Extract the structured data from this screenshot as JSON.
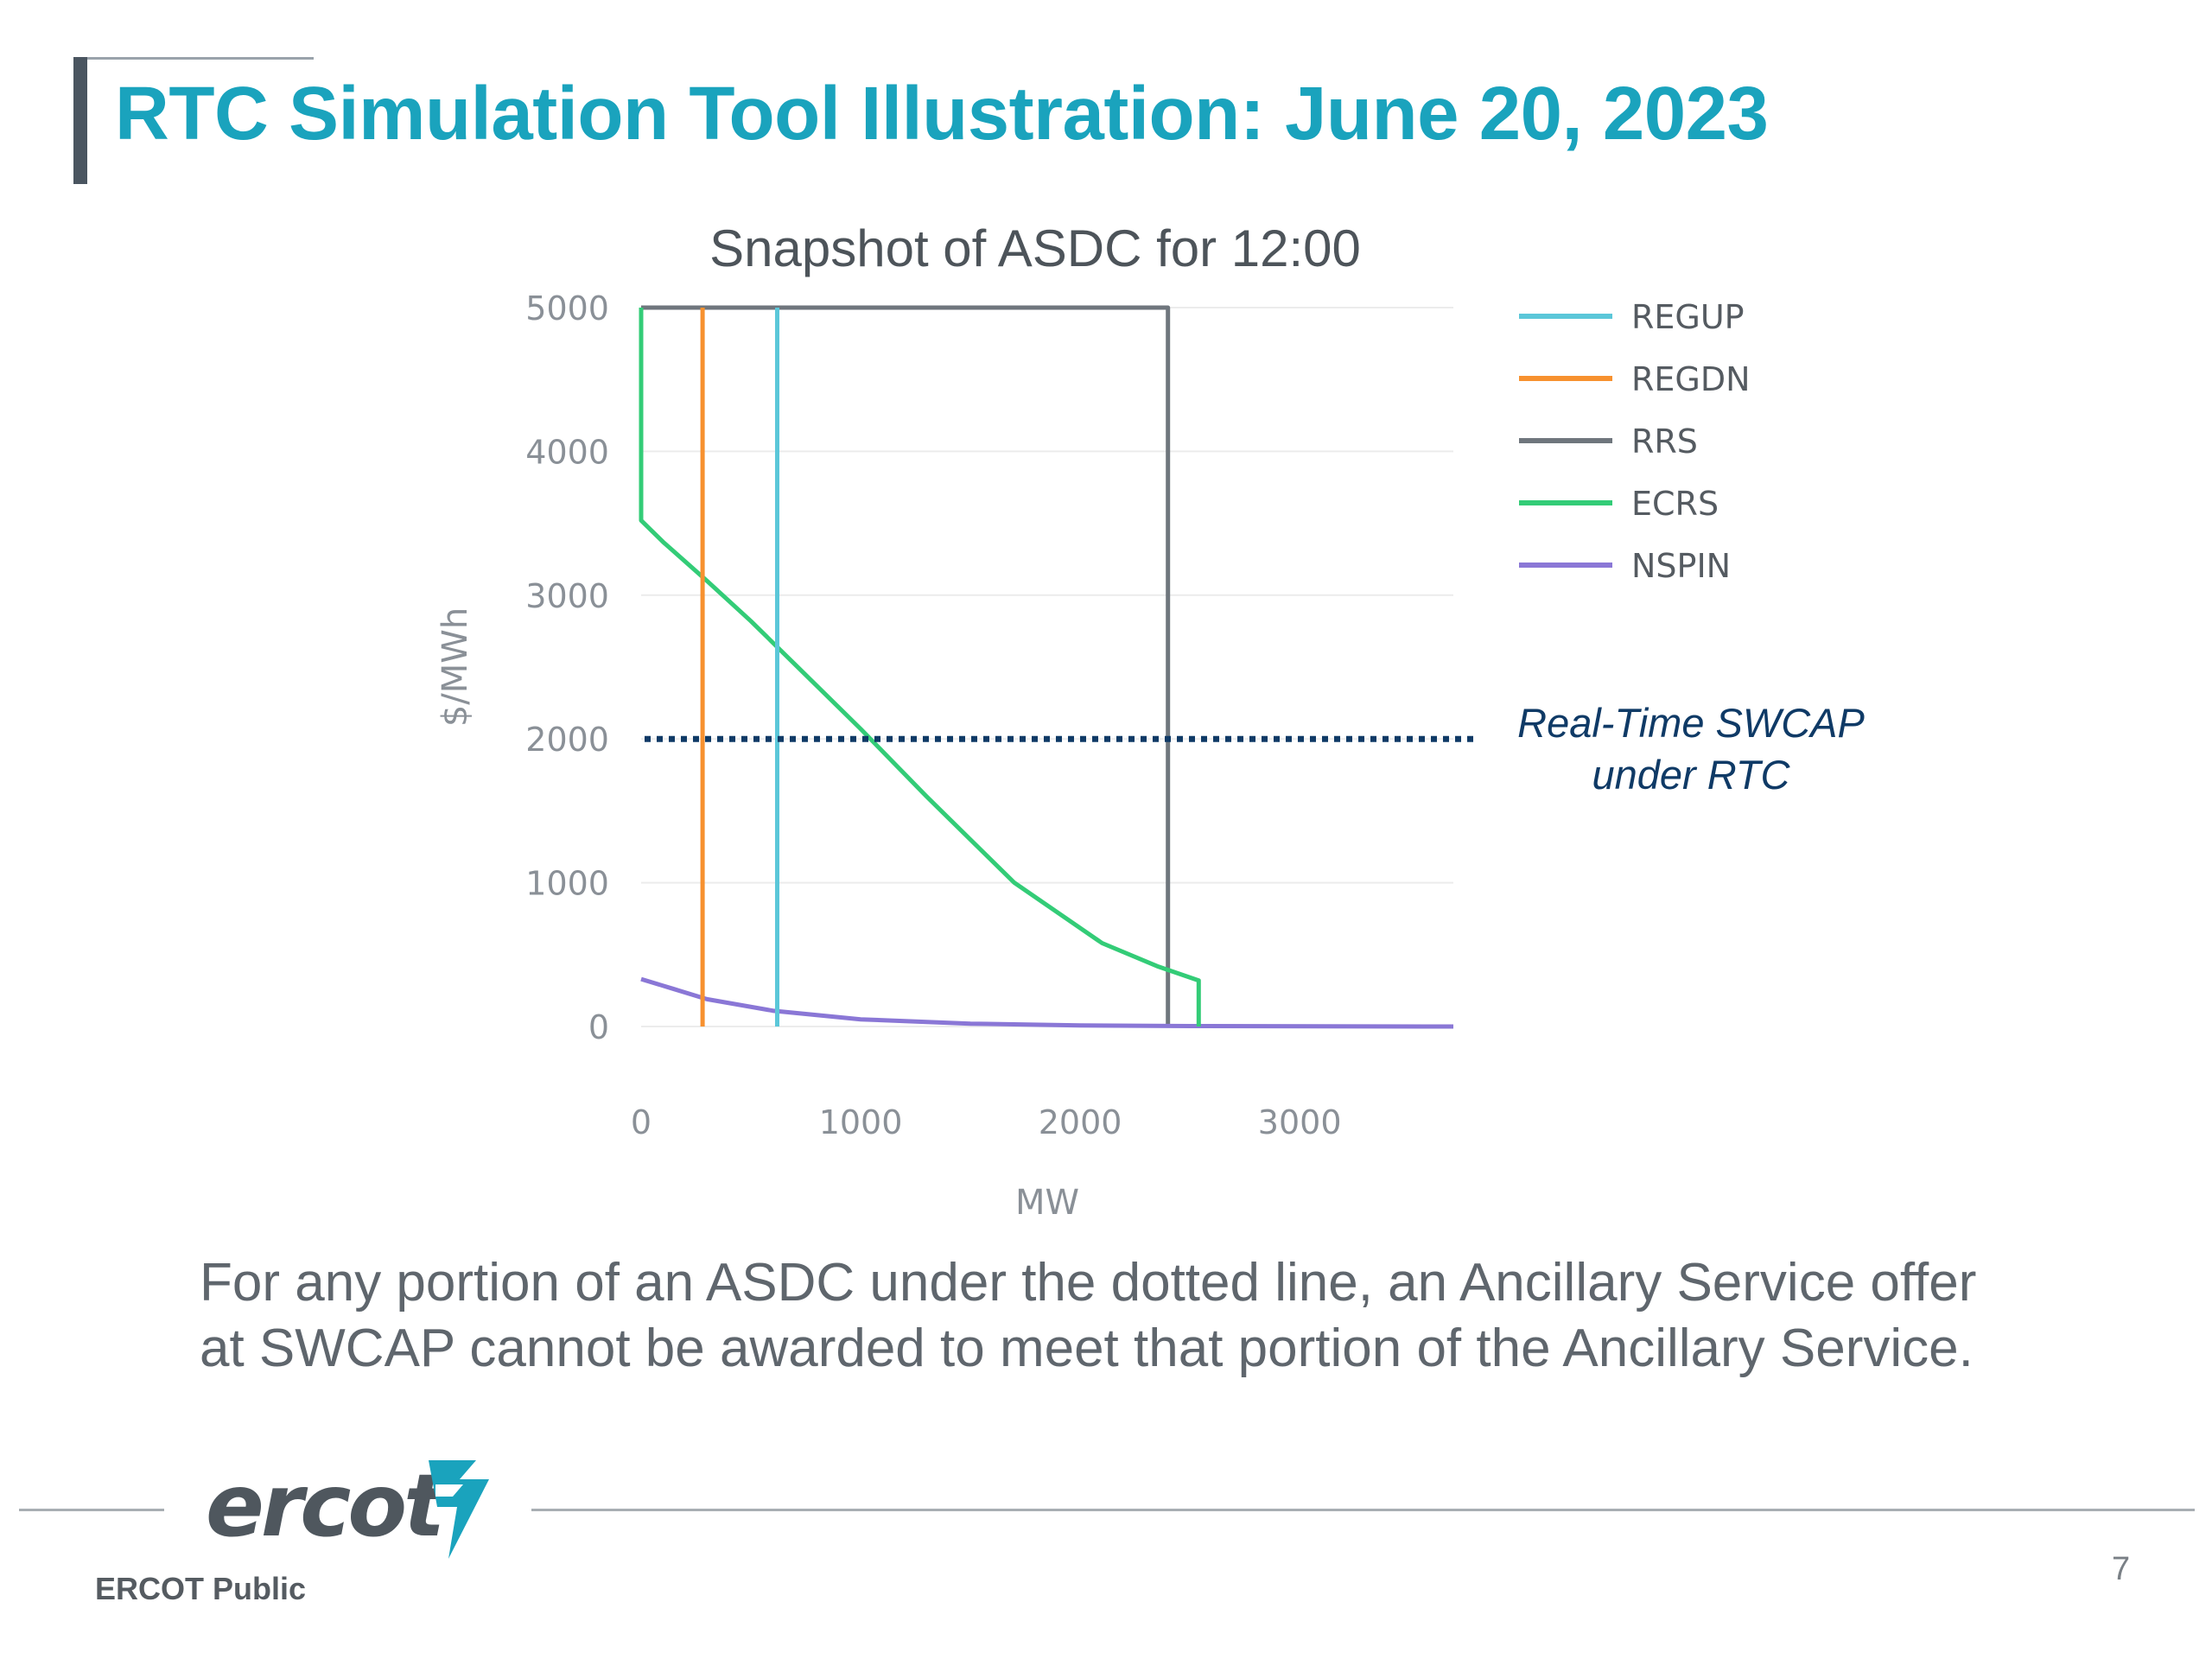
{
  "slide": {
    "title": "RTC Simulation Tool Illustration: June 20, 2023",
    "caption_line1": "For any portion of an ASDC under the dotted line, an Ancillary Service offer",
    "caption_line2": "at SWCAP cannot be awarded to meet that portion of the Ancillary Service.",
    "footer_label": "ERCOT Public",
    "logo_text": "ercot",
    "page_number": "7",
    "colors": {
      "title": "#1aa3bd",
      "annotation": "#0f3a66"
    }
  },
  "chart_data": {
    "type": "line",
    "title": "Snapshot of ASDC for 12:00",
    "xlabel": "MW",
    "ylabel": "$/MWh",
    "xlim": [
      0,
      3700
    ],
    "ylim": [
      0,
      5000
    ],
    "xticks": [
      0,
      1000,
      2000,
      3000
    ],
    "yticks": [
      0,
      1000,
      2000,
      3000,
      4000,
      5000
    ],
    "grid": true,
    "legend_position": "right",
    "series": [
      {
        "name": "REGUP",
        "color": "#5bc7d9",
        "points": [
          [
            620,
            5000
          ],
          [
            620,
            0
          ]
        ]
      },
      {
        "name": "REGDN",
        "color": "#f7912f",
        "points": [
          [
            280,
            5000
          ],
          [
            280,
            0
          ]
        ]
      },
      {
        "name": "RRS",
        "color": "#6f767d",
        "points": [
          [
            0,
            5000
          ],
          [
            2400,
            5000
          ],
          [
            2400,
            0
          ]
        ]
      },
      {
        "name": "ECRS",
        "color": "#33cc77",
        "points": [
          [
            0,
            5000
          ],
          [
            0,
            3520
          ],
          [
            100,
            3370
          ],
          [
            300,
            3100
          ],
          [
            500,
            2820
          ],
          [
            700,
            2520
          ],
          [
            1000,
            2070
          ],
          [
            1300,
            1600
          ],
          [
            1700,
            1000
          ],
          [
            2100,
            580
          ],
          [
            2350,
            420
          ],
          [
            2540,
            320
          ],
          [
            2540,
            0
          ]
        ]
      },
      {
        "name": "NSPIN",
        "color": "#8a77d6",
        "points": [
          [
            0,
            330
          ],
          [
            150,
            260
          ],
          [
            300,
            190
          ],
          [
            600,
            110
          ],
          [
            1000,
            50
          ],
          [
            1500,
            20
          ],
          [
            2000,
            8
          ],
          [
            2500,
            3
          ],
          [
            3700,
            0
          ]
        ]
      }
    ],
    "reference_line": {
      "y": 2000,
      "label_line1": "Real-Time SWCAP",
      "label_line2": "under RTC",
      "style": "dotted",
      "color": "#0f3a66"
    }
  }
}
